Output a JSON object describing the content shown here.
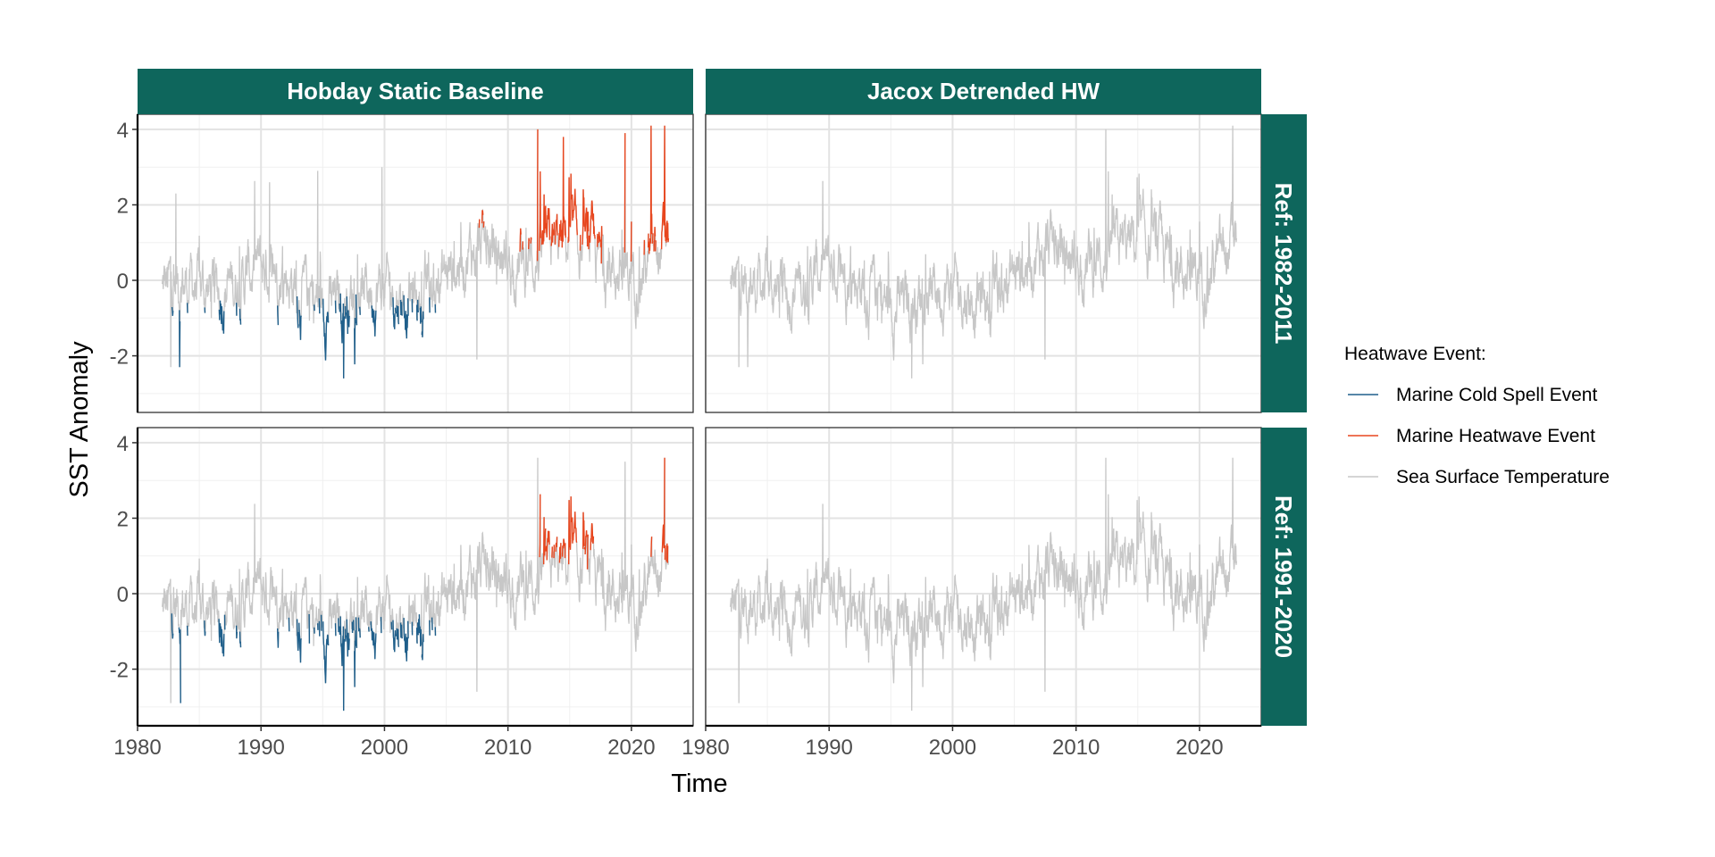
{
  "chart_data": {
    "type": "line",
    "xlabel": "Time",
    "ylabel": "SST Anomaly",
    "xlim": [
      1980,
      2025
    ],
    "ylim": [
      -3.5,
      4.4
    ],
    "x_ticks": [
      1980,
      1990,
      2000,
      2010,
      2020
    ],
    "y_ticks": [
      -2,
      0,
      2,
      4
    ],
    "x_tick_labels": [
      "1980",
      "1990",
      "2000",
      "2010",
      "2020"
    ],
    "y_tick_labels": [
      "-2",
      "0",
      "2",
      "4"
    ],
    "grid": true,
    "facet_columns": [
      "Hobday Static Baseline",
      "Jacox Detrended HW"
    ],
    "facet_rows": [
      "Ref: 1982-2011",
      "Ref: 1991-2020"
    ],
    "legend": {
      "title": "Heatwave Event:",
      "position": "right",
      "entries": [
        {
          "label": "Marine Cold Spell Event",
          "color": "#1f5f8b"
        },
        {
          "label": "Marine Heatwave Event",
          "color": "#e8461e"
        },
        {
          "label": "Sea Surface Temperature",
          "color": "#c7c7c7"
        }
      ]
    },
    "x_range": [
      1982,
      2023
    ],
    "series": [
      {
        "name": "Sea Surface Temperature",
        "role": "base"
      },
      {
        "name": "Marine Heatwave Event",
        "role": "hot"
      },
      {
        "name": "Marine Cold Spell Event",
        "role": "cold"
      }
    ],
    "panels": [
      {
        "row": "Ref: 1982-2011",
        "col": "Hobday Static Baseline",
        "hot_thresh": 1.0,
        "cold_thresh": -0.8,
        "trend_adjust": false,
        "shift": 0.0,
        "hot_after": 2011,
        "cold_before": 2008,
        "extremes": [
          [
            1982.7,
            -2.3
          ],
          [
            1983.4,
            -2.3
          ],
          [
            1983.1,
            2.3
          ],
          [
            1990.7,
            2.6
          ],
          [
            1994.6,
            2.9
          ],
          [
            1996.7,
            -2.6
          ],
          [
            1999.8,
            3.0
          ],
          [
            2007.5,
            -2.1
          ],
          [
            2012.4,
            4.0
          ],
          [
            2014.5,
            3.8
          ],
          [
            2019.5,
            3.9
          ],
          [
            2021.6,
            4.1
          ],
          [
            2022.7,
            4.1
          ]
        ]
      },
      {
        "row": "Ref: 1982-2011",
        "col": "Jacox Detrended HW",
        "hot_thresh": 1.0,
        "cold_thresh": -99,
        "trend_adjust": true,
        "shift": 0.0,
        "hot_after": 2011,
        "cold_before": 2008,
        "extremes": [
          [
            1982.7,
            -2.3
          ],
          [
            1983.4,
            -2.3
          ],
          [
            1996.7,
            -2.6
          ],
          [
            2007.5,
            -2.1
          ],
          [
            2012.4,
            4.0
          ],
          [
            2022.7,
            4.1
          ]
        ]
      },
      {
        "row": "Ref: 1991-2020",
        "col": "Hobday Static Baseline",
        "hot_thresh": 1.2,
        "cold_thresh": -0.95,
        "trend_adjust": false,
        "shift": -0.25,
        "hot_after": 2011,
        "cold_before": 2008,
        "extremes": [
          [
            1982.7,
            -2.9
          ],
          [
            1983.5,
            -2.9
          ],
          [
            1996.7,
            -3.1
          ],
          [
            2007.5,
            -2.6
          ],
          [
            2012.4,
            3.6
          ],
          [
            2019.5,
            3.5
          ],
          [
            2022.7,
            3.6
          ]
        ]
      },
      {
        "row": "Ref: 1991-2020",
        "col": "Jacox Detrended HW",
        "hot_thresh": 1.3,
        "cold_thresh": -99,
        "trend_adjust": true,
        "shift": -0.25,
        "hot_after": 2011,
        "cold_before": 2008,
        "extremes": [
          [
            1982.7,
            -2.9
          ],
          [
            1996.7,
            -3.1
          ],
          [
            2007.5,
            -2.6
          ],
          [
            2012.4,
            3.6
          ],
          [
            2022.7,
            3.6
          ]
        ]
      }
    ]
  }
}
